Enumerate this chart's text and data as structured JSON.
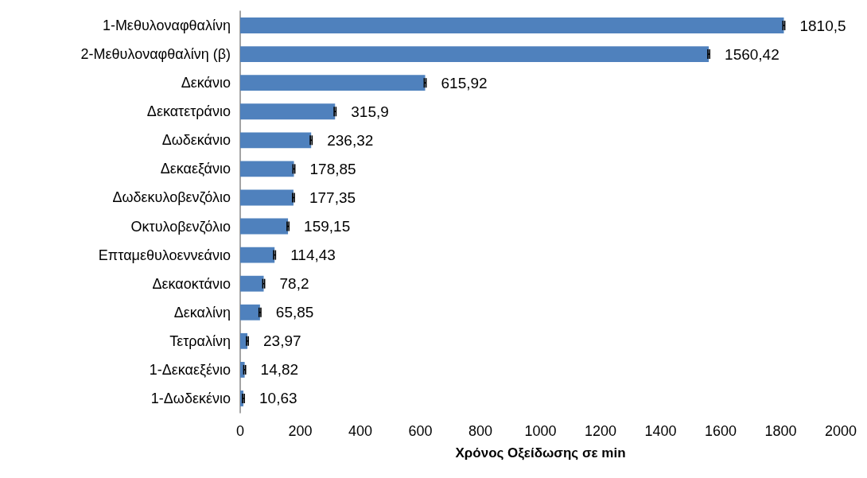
{
  "chart_data": {
    "type": "bar",
    "orientation": "horizontal",
    "xlabel": "Χρόνος Οξείδωσης σε min",
    "categories": [
      "1-Μεθυλοναφθαλίνη",
      "2-Μεθυλοναφθαλίνη (β)",
      "Δεκάνιο",
      "Δεκατετράνιο",
      "Δωδεκάνιο",
      "Δεκαεξάνιο",
      "Δωδεκυλοβενζόλιο",
      "Οκτυλοβενζόλιο",
      "Επταμεθυλοεννεάνιο",
      "Δεκαοκτάνιο",
      "Δεκαλίνη",
      "Τετραλίνη",
      "1-Δεκαεξένιο",
      "1-Δωδεκένιο"
    ],
    "values": [
      1810.5,
      1560.42,
      615.92,
      315.9,
      236.32,
      178.85,
      177.35,
      159.15,
      114.43,
      78.2,
      65.85,
      23.97,
      14.82,
      10.63
    ],
    "value_labels": [
      "1810,5",
      "1560,42",
      "615,92",
      "315,9",
      "236,32",
      "178,85",
      "177,35",
      "159,15",
      "114,43",
      "78,2",
      "65,85",
      "23,97",
      "14,82",
      "10,63"
    ],
    "errors": [
      3,
      3,
      3,
      3,
      3,
      3,
      3,
      3,
      3,
      3,
      3,
      3,
      3,
      3
    ],
    "color": "#4f81bd",
    "xlim": [
      0,
      2000
    ],
    "xticks": [
      0,
      200,
      400,
      600,
      800,
      1000,
      1200,
      1400,
      1600,
      1800,
      2000
    ],
    "grid": false
  }
}
